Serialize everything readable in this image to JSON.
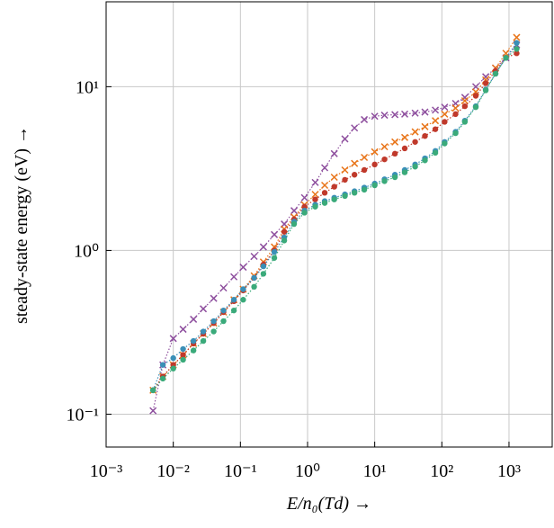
{
  "chart_data": {
    "type": "line",
    "x_label": "E/n₀(Td) →",
    "y_label": "steady-state energy (eV) →",
    "log_x": true,
    "log_y": true,
    "grid": true,
    "xlim": [
      0.001,
      4400
    ],
    "ylim": [
      0.063,
      33
    ],
    "xticks": [
      {
        "value": 0.001,
        "label": "10⁻³"
      },
      {
        "value": 0.01,
        "label": "10⁻²"
      },
      {
        "value": 0.1,
        "label": "10⁻¹"
      },
      {
        "value": 1,
        "label": "10⁰"
      },
      {
        "value": 10,
        "label": "10¹"
      },
      {
        "value": 100,
        "label": "10²"
      },
      {
        "value": 1000,
        "label": "10³"
      }
    ],
    "yticks": [
      {
        "value": 0.1,
        "label": "10⁻¹"
      },
      {
        "value": 1,
        "label": "10⁰"
      },
      {
        "value": 10,
        "label": "10¹"
      }
    ],
    "x": [
      0.005,
      0.007,
      0.01,
      0.014,
      0.02,
      0.028,
      0.04,
      0.056,
      0.08,
      0.11,
      0.16,
      0.22,
      0.32,
      0.45,
      0.63,
      0.9,
      1.3,
      1.8,
      2.5,
      3.6,
      5,
      7,
      10,
      14,
      20,
      28,
      40,
      56,
      80,
      110,
      160,
      220,
      320,
      450,
      630,
      900,
      1300
    ],
    "series": [
      {
        "color": "#8e4f9e",
        "marker": "x",
        "values": [
          0.105,
          0.2,
          0.29,
          0.33,
          0.38,
          0.44,
          0.51,
          0.59,
          0.69,
          0.79,
          0.92,
          1.05,
          1.25,
          1.45,
          1.75,
          2.1,
          2.6,
          3.2,
          3.9,
          4.8,
          5.6,
          6.3,
          6.6,
          6.7,
          6.75,
          6.8,
          6.9,
          7.0,
          7.2,
          7.5,
          7.9,
          8.6,
          10,
          11.5,
          13,
          15,
          18
        ]
      },
      {
        "color": "#e8751a",
        "marker": "x",
        "values": [
          0.14,
          0.17,
          0.2,
          0.23,
          0.27,
          0.31,
          0.36,
          0.42,
          0.5,
          0.58,
          0.7,
          0.85,
          1.05,
          1.35,
          1.6,
          1.9,
          2.2,
          2.5,
          2.8,
          3.1,
          3.4,
          3.7,
          4.0,
          4.3,
          4.6,
          4.9,
          5.3,
          5.7,
          6.2,
          6.8,
          7.4,
          8.2,
          9.3,
          11,
          13,
          16,
          20
        ]
      },
      {
        "color": "#c0392b",
        "marker": "circle",
        "values": [
          0.14,
          0.17,
          0.2,
          0.23,
          0.27,
          0.31,
          0.36,
          0.42,
          0.49,
          0.57,
          0.68,
          0.82,
          1.0,
          1.3,
          1.55,
          1.85,
          2.05,
          2.25,
          2.45,
          2.7,
          2.9,
          3.1,
          3.35,
          3.6,
          3.9,
          4.2,
          4.6,
          5.0,
          5.5,
          6.1,
          6.8,
          7.6,
          8.8,
          10.5,
          12.5,
          15,
          16
        ]
      },
      {
        "color": "#3a8fb7",
        "marker": "circle",
        "values": [
          0.14,
          0.2,
          0.22,
          0.25,
          0.28,
          0.32,
          0.37,
          0.43,
          0.5,
          0.58,
          0.68,
          0.8,
          0.98,
          1.2,
          1.5,
          1.75,
          1.9,
          2.0,
          2.1,
          2.2,
          2.3,
          2.42,
          2.56,
          2.72,
          2.9,
          3.1,
          3.35,
          3.65,
          4.05,
          4.6,
          5.3,
          6.2,
          7.6,
          9.6,
          12,
          15,
          18.5
        ]
      },
      {
        "color": "#3aaa7a",
        "marker": "circle",
        "values": [
          0.14,
          0.165,
          0.19,
          0.215,
          0.245,
          0.28,
          0.32,
          0.37,
          0.43,
          0.5,
          0.6,
          0.72,
          0.9,
          1.15,
          1.45,
          1.7,
          1.85,
          1.95,
          2.05,
          2.15,
          2.25,
          2.35,
          2.5,
          2.65,
          2.8,
          3.0,
          3.25,
          3.55,
          3.95,
          4.5,
          5.2,
          6.1,
          7.5,
          9.5,
          12,
          15,
          17
        ]
      }
    ]
  }
}
